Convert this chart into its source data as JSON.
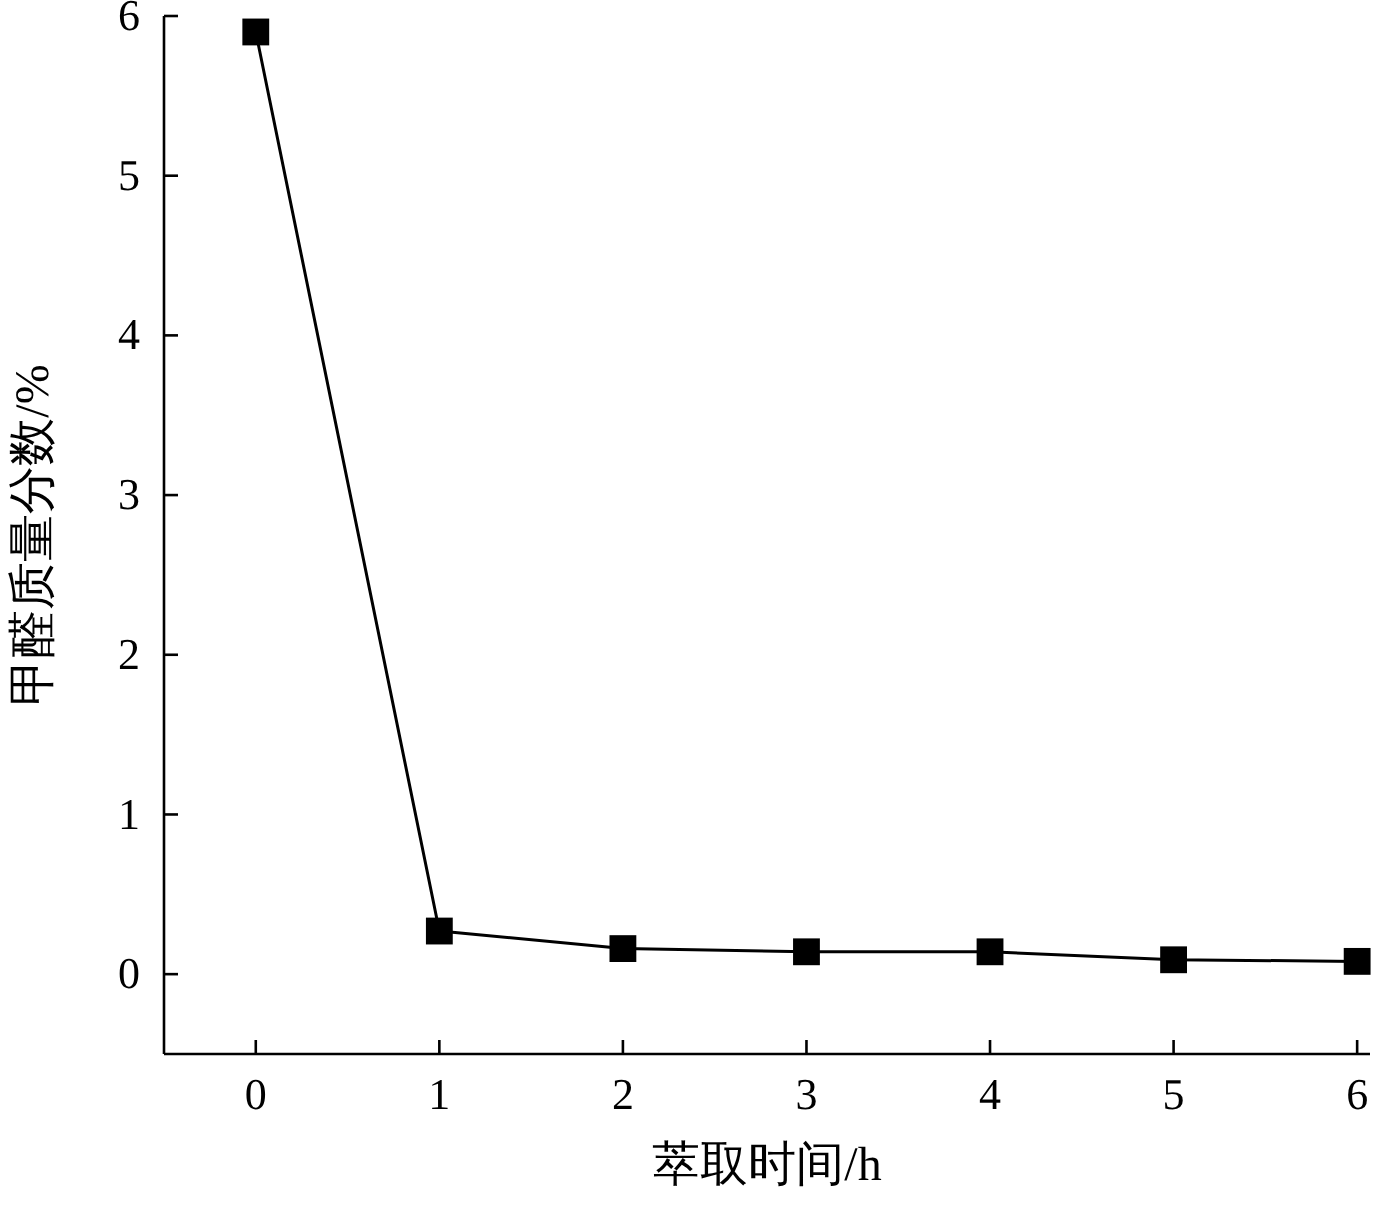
{
  "chart_data": {
    "type": "line",
    "xlabel": "萃取时间/h",
    "ylabel": "甲醛质量分数/%",
    "x": [
      0,
      1,
      2,
      3,
      4,
      5,
      6
    ],
    "series": [
      {
        "color": "#000000",
        "values": [
          5.9,
          0.27,
          0.16,
          0.14,
          0.14,
          0.09,
          0.08
        ]
      }
    ],
    "xlim": [
      -0.5,
      6.07
    ],
    "ylim": [
      -0.5,
      6
    ],
    "xticks": [
      0,
      1,
      2,
      3,
      4,
      5,
      6
    ],
    "yticks": [
      0,
      1,
      2,
      3,
      4,
      5,
      6
    ],
    "marker": "square",
    "line_style": "solid",
    "grid": false
  }
}
